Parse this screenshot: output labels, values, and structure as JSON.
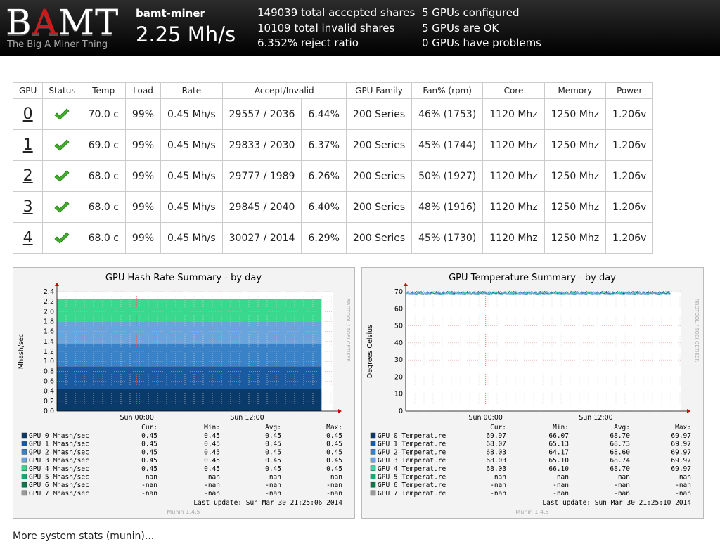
{
  "header": {
    "logo_text_pre": "B",
    "logo_text_a": "A",
    "logo_text_post": "MT",
    "logo_tagline": "The Big A Miner Thing",
    "host": "bamt-miner",
    "total_rate": "2.25 Mh/s",
    "accepted": "149039 total accepted shares",
    "invalid": "10109 total invalid shares",
    "reject_ratio": "6.352% reject ratio",
    "gpus_configured": "5 GPUs configured",
    "gpus_ok": "5 GPUs are OK",
    "gpus_problems": "0 GPUs have problems"
  },
  "table": {
    "headers": [
      "GPU",
      "Status",
      "Temp",
      "Load",
      "Rate",
      "Accept/Invalid",
      "GPU Family",
      "Fan% (rpm)",
      "Core",
      "Memory",
      "Power"
    ],
    "rows": [
      {
        "id": "0",
        "temp": "70.0 c",
        "load": "99%",
        "rate": "0.45 Mh/s",
        "accept": "29557 / 2036",
        "pct": "6.44%",
        "family": "200 Series",
        "fan": "46% (1753)",
        "core": "1120 Mhz",
        "mem": "1250 Mhz",
        "power": "1.206v"
      },
      {
        "id": "1",
        "temp": "69.0 c",
        "load": "99%",
        "rate": "0.45 Mh/s",
        "accept": "29833 / 2030",
        "pct": "6.37%",
        "family": "200 Series",
        "fan": "45% (1744)",
        "core": "1120 Mhz",
        "mem": "1250 Mhz",
        "power": "1.206v"
      },
      {
        "id": "2",
        "temp": "68.0 c",
        "load": "99%",
        "rate": "0.45 Mh/s",
        "accept": "29777 / 1989",
        "pct": "6.26%",
        "family": "200 Series",
        "fan": "50% (1927)",
        "core": "1120 Mhz",
        "mem": "1250 Mhz",
        "power": "1.206v"
      },
      {
        "id": "3",
        "temp": "68.0 c",
        "load": "99%",
        "rate": "0.45 Mh/s",
        "accept": "29845 / 2040",
        "pct": "6.40%",
        "family": "200 Series",
        "fan": "48% (1916)",
        "core": "1120 Mhz",
        "mem": "1250 Mhz",
        "power": "1.206v"
      },
      {
        "id": "4",
        "temp": "68.0 c",
        "load": "99%",
        "rate": "0.45 Mh/s",
        "accept": "30027 / 2014",
        "pct": "6.29%",
        "family": "200 Series",
        "fan": "45% (1730)",
        "core": "1120 Mhz",
        "mem": "1250 Mhz",
        "power": "1.206v"
      }
    ],
    "status_icon": "check-icon",
    "status_color": "#3fae29"
  },
  "chart_data": [
    {
      "type": "area",
      "title": "GPU Hash Rate Summary - by day",
      "ylabel": "Mhash/sec",
      "side_label": "RRDTOOL / TOBI OETIKER",
      "ylim": [
        0,
        2.4
      ],
      "yticks": [
        "0.0",
        "0.2",
        "0.4",
        "0.6",
        "0.8",
        "1.0",
        "1.2",
        "1.4",
        "1.6",
        "1.8",
        "2.0",
        "2.2",
        "2.4"
      ],
      "xticks": [
        "Sun 00:00",
        "Sun 12:00"
      ],
      "stack_labels": [
        "Cur:",
        "Min:",
        "Avg:",
        "Max:"
      ],
      "series": [
        {
          "name": "GPU 0 Mhash/sec",
          "color": "#0a3a6a",
          "cur": "0.45",
          "min": "0.45",
          "avg": "0.45",
          "max": "0.45",
          "value": 0.45
        },
        {
          "name": "GPU 1 Mhash/sec",
          "color": "#1a5aa0",
          "cur": "0.45",
          "min": "0.45",
          "avg": "0.45",
          "max": "0.45",
          "value": 0.45
        },
        {
          "name": "GPU 2 Mhash/sec",
          "color": "#3a82c8",
          "cur": "0.45",
          "min": "0.45",
          "avg": "0.45",
          "max": "0.45",
          "value": 0.45
        },
        {
          "name": "GPU 3 Mhash/sec",
          "color": "#6aa4dc",
          "cur": "0.45",
          "min": "0.45",
          "avg": "0.45",
          "max": "0.45",
          "value": 0.45
        },
        {
          "name": "GPU 4 Mhash/sec",
          "color": "#3ad88e",
          "cur": "0.45",
          "min": "0.45",
          "avg": "0.45",
          "max": "0.45",
          "value": 0.45
        },
        {
          "name": "GPU 5 Mhash/sec",
          "color": "#18a870",
          "cur": "-nan",
          "min": "-nan",
          "avg": "-nan",
          "max": "-nan"
        },
        {
          "name": "GPU 6 Mhash/sec",
          "color": "#0c7a4a",
          "cur": "-nan",
          "min": "-nan",
          "avg": "-nan",
          "max": "-nan"
        },
        {
          "name": "GPU 7 Mhash/sec",
          "color": "#999999",
          "cur": "-nan",
          "min": "-nan",
          "avg": "-nan",
          "max": "-nan"
        }
      ],
      "last_update": "Last update:  Sun Mar 30 21:25:06 2014",
      "footer": "Munin 1.4.5"
    },
    {
      "type": "line",
      "title": "GPU Temperature Summary - by day",
      "ylabel": "Degrees Celsius",
      "side_label": "RRDTOOL / TOBI OETIKER",
      "ylim": [
        0,
        70
      ],
      "yticks": [
        "0",
        "10",
        "20",
        "30",
        "40",
        "50",
        "60",
        "70"
      ],
      "xticks": [
        "Sun 00:00",
        "Sun 12:00"
      ],
      "stack_labels": [
        "Cur:",
        "Min:",
        "Avg:",
        "Max:"
      ],
      "series": [
        {
          "name": "GPU 0 Temperature",
          "color": "#0a3a6a",
          "cur": "69.97",
          "min": "66.07",
          "avg": "68.70",
          "max": "69.97",
          "value": 68.7
        },
        {
          "name": "GPU 1 Temperature",
          "color": "#1a5aa0",
          "cur": "68.07",
          "min": "65.13",
          "avg": "68.73",
          "max": "69.97",
          "value": 68.73
        },
        {
          "name": "GPU 2 Temperature",
          "color": "#3a82c8",
          "cur": "68.03",
          "min": "64.17",
          "avg": "68.60",
          "max": "69.97",
          "value": 68.6
        },
        {
          "name": "GPU 3 Temperature",
          "color": "#6aa4dc",
          "cur": "68.03",
          "min": "65.10",
          "avg": "68.74",
          "max": "69.97",
          "value": 68.74
        },
        {
          "name": "GPU 4 Temperature",
          "color": "#3ad8a8",
          "cur": "68.03",
          "min": "66.10",
          "avg": "68.70",
          "max": "69.97",
          "value": 68.7
        },
        {
          "name": "GPU 5 Temperature",
          "color": "#18a870",
          "cur": "-nan",
          "min": "-nan",
          "avg": "-nan",
          "max": "-nan"
        },
        {
          "name": "GPU 6 Temperature",
          "color": "#0c7a4a",
          "cur": "-nan",
          "min": "-nan",
          "avg": "-nan",
          "max": "-nan"
        },
        {
          "name": "GPU 7 Temperature",
          "color": "#999999",
          "cur": "-nan",
          "min": "-nan",
          "avg": "-nan",
          "max": "-nan"
        }
      ],
      "last_update": "Last update:  Sun Mar 30 21:25:10 2014",
      "footer": "Munin 1.4.5"
    }
  ],
  "footer_link": "More system stats (munin)..."
}
